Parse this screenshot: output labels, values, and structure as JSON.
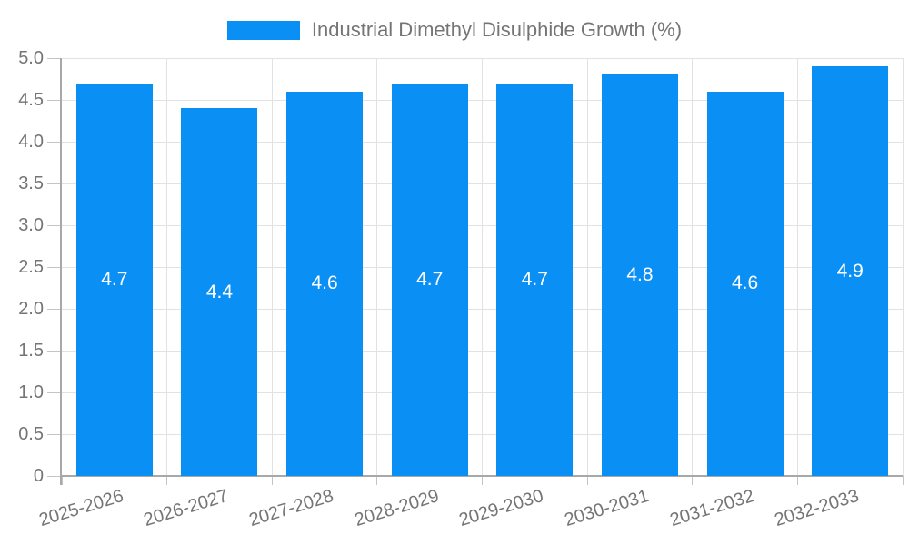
{
  "legend": {
    "label": "Industrial Dimethyl Disulphide Growth (%)"
  },
  "colors": {
    "bar": "#0a90f5",
    "grid": "#e2e2e2",
    "axis": "#a8a8a8",
    "tick": "#c4c4c4",
    "tick_label": "#757575",
    "value_label": "#ffffff",
    "background": "#ffffff"
  },
  "chart_data": {
    "type": "bar",
    "title": "Industrial Dimethyl Disulphide Growth (%)",
    "categories": [
      "2025-2026",
      "2026-2027",
      "2027-2028",
      "2028-2029",
      "2029-2030",
      "2030-2031",
      "2031-2032",
      "2032-2033"
    ],
    "values": [
      4.7,
      4.4,
      4.6,
      4.7,
      4.7,
      4.8,
      4.6,
      4.9
    ],
    "value_labels": [
      "4.7",
      "4.4",
      "4.6",
      "4.7",
      "4.7",
      "4.8",
      "4.6",
      "4.9"
    ],
    "xlabel": "",
    "ylabel": "",
    "ylim": [
      0,
      5
    ],
    "ytick_step": 0.5,
    "ytick_labels": [
      "0",
      "0.5",
      "1.0",
      "1.5",
      "2.0",
      "2.5",
      "3.0",
      "3.5",
      "4.0",
      "4.5",
      "5.0"
    ],
    "grid": true,
    "legend_position": "top",
    "legend_entries": [
      "Industrial Dimethyl Disulphide Growth (%)"
    ]
  }
}
